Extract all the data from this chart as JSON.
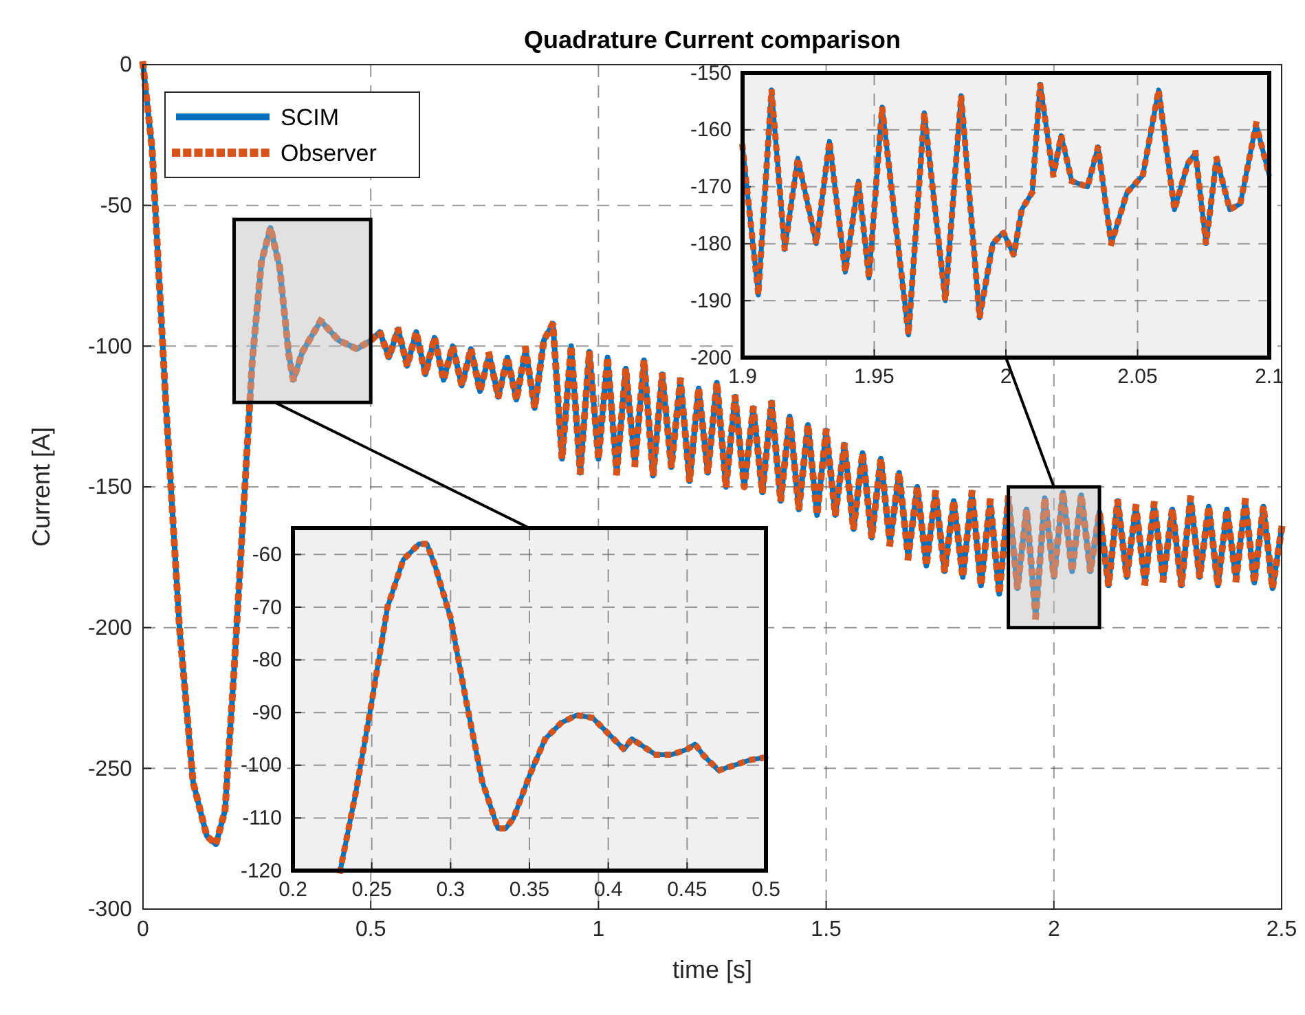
{
  "chart_data": [
    {
      "type": "line",
      "title": "Quadrature Current comparison",
      "xlabel": "time [s]",
      "ylabel": "Current [A]",
      "xlim": [
        0,
        2.5
      ],
      "ylim": [
        -300,
        0
      ],
      "xticks": [
        0,
        0.5,
        1,
        1.5,
        2,
        2.5
      ],
      "yticks": [
        -300,
        -250,
        -200,
        -150,
        -100,
        -50,
        0
      ],
      "grid": true,
      "legend": "top left",
      "marker": "none",
      "x": [
        0,
        0.02,
        0.05,
        0.08,
        0.11,
        0.14,
        0.16,
        0.18,
        0.2,
        0.22,
        0.24,
        0.26,
        0.28,
        0.3,
        0.32,
        0.33,
        0.35,
        0.39,
        0.43,
        0.47,
        0.5,
        0.52,
        0.54,
        0.56,
        0.58,
        0.6,
        0.62,
        0.64,
        0.66,
        0.68,
        0.7,
        0.72,
        0.74,
        0.76,
        0.78,
        0.8,
        0.82,
        0.84,
        0.86,
        0.88,
        0.9,
        0.92,
        0.94,
        0.96,
        0.98,
        1,
        1.02,
        1.04,
        1.06,
        1.08,
        1.1,
        1.12,
        1.14,
        1.16,
        1.18,
        1.2,
        1.22,
        1.24,
        1.26,
        1.28,
        1.3,
        1.32,
        1.34,
        1.36,
        1.38,
        1.4,
        1.42,
        1.44,
        1.46,
        1.48,
        1.5,
        1.52,
        1.54,
        1.56,
        1.58,
        1.6,
        1.62,
        1.64,
        1.66,
        1.68,
        1.7,
        1.72,
        1.74,
        1.76,
        1.78,
        1.8,
        1.82,
        1.84,
        1.86,
        1.88,
        1.9,
        1.92,
        1.94,
        1.96,
        1.98,
        2,
        2.02,
        2.04,
        2.06,
        2.08,
        2.1,
        2.12,
        2.14,
        2.16,
        2.18,
        2.2,
        2.22,
        2.24,
        2.26,
        2.28,
        2.3,
        2.32,
        2.34,
        2.36,
        2.38,
        2.4,
        2.42,
        2.44,
        2.46,
        2.48,
        2.5
      ],
      "series": [
        {
          "name": "SCIM",
          "color": "#0072bd",
          "line_style": "solid",
          "values": [
            0,
            -30,
            -120,
            -200,
            -255,
            -274,
            -277,
            -265,
            -215,
            -160,
            -105,
            -70,
            -58,
            -72,
            -103,
            -112,
            -102,
            -91,
            -98,
            -101,
            -98,
            -95,
            -104,
            -94,
            -107,
            -95,
            -110,
            -97,
            -112,
            -100,
            -114,
            -101,
            -116,
            -103,
            -118,
            -104,
            -119,
            -101,
            -122,
            -98,
            -92,
            -140,
            -100,
            -145,
            -102,
            -140,
            -104,
            -145,
            -108,
            -142,
            -105,
            -146,
            -110,
            -143,
            -112,
            -148,
            -115,
            -145,
            -113,
            -150,
            -118,
            -150,
            -122,
            -152,
            -120,
            -155,
            -125,
            -158,
            -128,
            -160,
            -130,
            -160,
            -135,
            -165,
            -138,
            -168,
            -140,
            -170,
            -145,
            -175,
            -150,
            -178,
            -152,
            -180,
            -155,
            -182,
            -152,
            -185,
            -155,
            -188,
            -154,
            -186,
            -158,
            -196,
            -154,
            -182,
            -152,
            -180,
            -153,
            -180,
            -159,
            -185,
            -155,
            -182,
            -157,
            -184,
            -156,
            -183,
            -158,
            -185,
            -154,
            -182,
            -157,
            -185,
            -158,
            -183,
            -155,
            -184,
            -157,
            -186,
            -165
          ]
        },
        {
          "name": "Observer",
          "color": "#d95319",
          "line_style": "dotted",
          "values": [
            0,
            -30,
            -120,
            -200,
            -255,
            -274,
            -277,
            -265,
            -215,
            -160,
            -105,
            -70,
            -58,
            -72,
            -103,
            -112,
            -102,
            -91,
            -98,
            -101,
            -98,
            -95,
            -104,
            -94,
            -107,
            -95,
            -110,
            -97,
            -112,
            -100,
            -114,
            -101,
            -116,
            -103,
            -118,
            -104,
            -119,
            -101,
            -122,
            -98,
            -92,
            -140,
            -100,
            -145,
            -102,
            -140,
            -104,
            -145,
            -108,
            -142,
            -105,
            -146,
            -110,
            -143,
            -112,
            -148,
            -115,
            -145,
            -113,
            -150,
            -118,
            -150,
            -122,
            -152,
            -120,
            -155,
            -125,
            -158,
            -128,
            -160,
            -130,
            -160,
            -135,
            -165,
            -138,
            -168,
            -140,
            -170,
            -145,
            -175,
            -150,
            -178,
            -152,
            -180,
            -155,
            -182,
            -152,
            -185,
            -155,
            -188,
            -154,
            -186,
            -158,
            -196,
            -154,
            -182,
            -152,
            -180,
            -153,
            -180,
            -159,
            -185,
            -155,
            -182,
            -157,
            -184,
            -156,
            -183,
            -158,
            -185,
            -154,
            -182,
            -157,
            -185,
            -158,
            -183,
            -155,
            -184,
            -157,
            -186,
            -165
          ]
        }
      ]
    },
    {
      "type": "line",
      "xlim": [
        0.2,
        0.5
      ],
      "ylim": [
        -120,
        -55
      ],
      "xticks": [
        {
          "value": 0.2,
          "label": "0.2"
        },
        {
          "value": 0.25,
          "label": "0.25"
        },
        {
          "value": 0.3,
          "label": "0.3"
        },
        {
          "value": 0.35,
          "label": "0.35"
        },
        {
          "value": 0.4,
          "label": "0.4"
        },
        {
          "value": 0.45,
          "label": "0.45"
        },
        {
          "value": 0.5,
          "label": "0.5"
        }
      ],
      "yticks": [
        -120,
        -110,
        -100,
        -90,
        -80,
        -70,
        -60
      ],
      "grid": true,
      "marker": "none",
      "x": [
        0.23,
        0.24,
        0.25,
        0.26,
        0.27,
        0.28,
        0.285,
        0.29,
        0.3,
        0.31,
        0.32,
        0.33,
        0.335,
        0.34,
        0.35,
        0.36,
        0.37,
        0.38,
        0.39,
        0.4,
        0.41,
        0.415,
        0.42,
        0.43,
        0.44,
        0.45,
        0.455,
        0.46,
        0.47,
        0.48,
        0.49,
        0.5
      ],
      "series": [
        {
          "color": "#0072bd",
          "line_style": "solid",
          "values": [
            -120,
            -105,
            -88,
            -70,
            -61,
            -58,
            -58,
            -62,
            -72,
            -88,
            -103,
            -112,
            -112,
            -110,
            -102,
            -95,
            -92,
            -90.5,
            -91,
            -94,
            -97,
            -95,
            -96,
            -98,
            -98,
            -97,
            -96,
            -98,
            -101,
            -100,
            -99,
            -98.5
          ]
        },
        {
          "color": "#d95319",
          "line_style": "dotted",
          "values": [
            -120,
            -105,
            -88,
            -70,
            -61,
            -58,
            -58,
            -62,
            -72,
            -88,
            -103,
            -112,
            -112,
            -110,
            -102,
            -95,
            -92,
            -90.5,
            -91,
            -94,
            -97,
            -95,
            -96,
            -98,
            -98,
            -97,
            -96,
            -98,
            -101,
            -100,
            -99,
            -98.5
          ]
        }
      ]
    },
    {
      "type": "line",
      "xlim": [
        1.9,
        2.1
      ],
      "ylim": [
        -200,
        -150
      ],
      "xticks": [
        1.9,
        1.95,
        2,
        2.05,
        2.1
      ],
      "yticks": [
        -200,
        -190,
        -180,
        -170,
        -160,
        -150
      ],
      "grid": true,
      "marker": "none",
      "x": [
        1.9,
        1.906,
        1.911,
        1.916,
        1.921,
        1.928,
        1.933,
        1.939,
        1.944,
        1.948,
        1.953,
        1.963,
        1.969,
        1.977,
        1.983,
        1.99,
        1.995,
        1.999,
        2.003,
        2.006,
        2.01,
        2.013,
        2.018,
        2.021,
        2.025,
        2.031,
        2.035,
        2.04,
        2.046,
        2.052,
        2.058,
        2.064,
        2.069,
        2.072,
        2.076,
        2.08,
        2.085,
        2.089,
        2.095,
        2.1
      ],
      "series": [
        {
          "color": "#0072bd",
          "line_style": "solid",
          "values": [
            -163,
            -189,
            -153,
            -181,
            -165,
            -180,
            -162,
            -185,
            -169,
            -186,
            -156,
            -196,
            -157,
            -190,
            -154,
            -193,
            -180,
            -178,
            -182,
            -174,
            -171,
            -152,
            -168,
            -161,
            -169,
            -170,
            -163,
            -180,
            -171,
            -168,
            -153,
            -174,
            -166,
            -164,
            -180,
            -165,
            -174,
            -173,
            -159,
            -168
          ]
        },
        {
          "color": "#d95319",
          "line_style": "dotted",
          "values": [
            -163,
            -189,
            -153,
            -181,
            -165,
            -180,
            -162,
            -185,
            -169,
            -186,
            -156,
            -196,
            -157,
            -190,
            -154,
            -193,
            -180,
            -178,
            -182,
            -174,
            -171,
            -152,
            -168,
            -161,
            -169,
            -170,
            -163,
            -180,
            -171,
            -168,
            -153,
            -174,
            -166,
            -164,
            -180,
            -165,
            -174,
            -173,
            -159,
            -168
          ]
        }
      ]
    }
  ]
}
